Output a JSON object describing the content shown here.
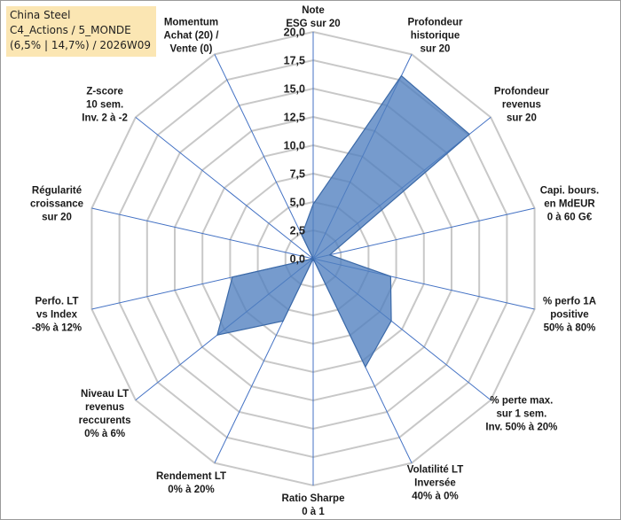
{
  "title_box": {
    "line1": "China Steel",
    "line2": "C4_Actions / 5_MONDE",
    "line3": "(6,5% | 14,7%) / 2026W09"
  },
  "chart_data": {
    "type": "radar",
    "title": "China Steel",
    "rlim": [
      0,
      20
    ],
    "rticks": [
      "0,0",
      "2,5",
      "5,0",
      "7,5",
      "10,0",
      "12,5",
      "15,0",
      "17,5",
      "20,0"
    ],
    "grid": true,
    "colors": {
      "fill": "#4f7fbf",
      "fill_opacity": 0.78,
      "stroke": "#3c6aa8",
      "grid": "#c8c8c8",
      "axis": "#4472c4"
    },
    "axes": [
      {
        "label": [
          "Note",
          "ESG sur 20"
        ],
        "value": 4.8
      },
      {
        "label": [
          "Profondeur",
          "historique",
          "sur 20"
        ],
        "value": 17.9
      },
      {
        "label": [
          "Profondeur",
          "revenus",
          "sur 20"
        ],
        "value": 17.6
      },
      {
        "label": [
          "Capi. bours.",
          "en MdEUR",
          "0 à 60 G€"
        ],
        "value": 1.5
      },
      {
        "label": [
          "% perfo 1A",
          "positive",
          "50% à 80%"
        ],
        "value": 7.0
      },
      {
        "label": [
          "% perte max.",
          "sur 1 sem.",
          "Inv. 50% à 20%"
        ],
        "value": 8.8
      },
      {
        "label": [
          "Volatilité LT",
          "Inversée",
          "40% à 0%"
        ],
        "value": 10.6
      },
      {
        "label": [
          "Ratio Sharpe",
          "0 à 1"
        ],
        "value": 0.0
      },
      {
        "label": [
          "Rendement LT",
          "0% à 20%"
        ],
        "value": 6.1
      },
      {
        "label": [
          "Niveau LT",
          "revenus",
          "reccurents",
          "0% à 6%"
        ],
        "value": 10.8
      },
      {
        "label": [
          "Perfo. LT",
          "vs Index",
          "-8% à 12%"
        ],
        "value": 7.3
      },
      {
        "label": [
          "Régularité",
          "croissance",
          "sur 20"
        ],
        "value": 0.0
      },
      {
        "label": [
          "Z-score",
          "10 sem.",
          "Inv. 2 à -2"
        ],
        "value": 0.0
      },
      {
        "label": [
          "Momentum",
          "Achat (20) /",
          "Vente (0)"
        ],
        "value": 2.3
      }
    ]
  }
}
